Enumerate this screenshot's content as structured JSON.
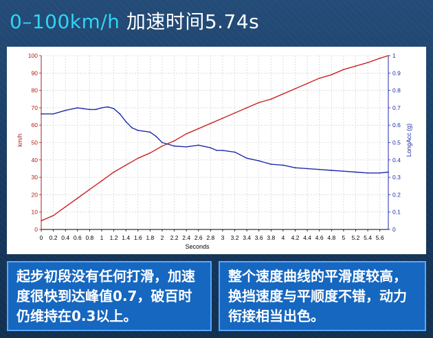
{
  "header": {
    "title_accent": "0–100km/h",
    "title_rest": " 加速时间5.74s"
  },
  "colors": {
    "speed_line": "#cc2222",
    "accel_line": "#1e2aa8",
    "grid": "#c8c8c8",
    "axis": "#000000"
  },
  "chart_data": {
    "type": "line",
    "xlabel": "Seconds",
    "ylabel": "km/h",
    "y2label": "LongAcc (g)",
    "xlim": [
      0,
      5.74
    ],
    "ylim": [
      0,
      100
    ],
    "y2lim": [
      0,
      1
    ],
    "grid": true,
    "x_ticks": [
      "0",
      "0.2",
      "0.4",
      "0.6",
      "0.8",
      "1",
      "1.2",
      "1.4",
      "1.6",
      "1.8",
      "2",
      "2.2",
      "2.4",
      "2.6",
      "2.8",
      "3",
      "3.2",
      "3.4",
      "3.6",
      "3.8",
      "4",
      "4.2",
      "4.4",
      "4.6",
      "4.8",
      "5",
      "5.2",
      "5.4",
      "5.6"
    ],
    "y_ticks": [
      "0",
      "10",
      "20",
      "30",
      "40",
      "50",
      "60",
      "70",
      "80",
      "90",
      "100"
    ],
    "y2_ticks": [
      "0",
      "0.1",
      "0.2",
      "0.3",
      "0.4",
      "0.5",
      "0.6",
      "0.7",
      "0.8",
      "0.9",
      "1"
    ],
    "series": [
      {
        "axis": "left",
        "x": [
          0,
          0.2,
          0.4,
          0.6,
          0.8,
          1.0,
          1.2,
          1.4,
          1.6,
          1.8,
          2.0,
          2.2,
          2.4,
          2.6,
          2.8,
          3.0,
          3.2,
          3.4,
          3.6,
          3.8,
          4.0,
          4.2,
          4.4,
          4.6,
          4.8,
          5.0,
          5.2,
          5.4,
          5.6,
          5.74
        ],
        "values": [
          5,
          8,
          13,
          18,
          23,
          28,
          33,
          37,
          41,
          44,
          48,
          51,
          55,
          58,
          61,
          64,
          67,
          70,
          73,
          75,
          78,
          81,
          84,
          87,
          89,
          92,
          94,
          96,
          98.5,
          100
        ]
      },
      {
        "axis": "right",
        "x": [
          0,
          0.2,
          0.4,
          0.6,
          0.7,
          0.8,
          0.9,
          1.0,
          1.1,
          1.2,
          1.3,
          1.4,
          1.5,
          1.6,
          1.8,
          1.9,
          2.0,
          2.2,
          2.4,
          2.6,
          2.8,
          2.9,
          3.0,
          3.2,
          3.4,
          3.6,
          3.8,
          4.0,
          4.2,
          4.4,
          4.6,
          4.8,
          5.0,
          5.2,
          5.4,
          5.6,
          5.74
        ],
        "values": [
          0.665,
          0.665,
          0.685,
          0.7,
          0.695,
          0.69,
          0.69,
          0.7,
          0.705,
          0.695,
          0.665,
          0.62,
          0.585,
          0.57,
          0.56,
          0.535,
          0.5,
          0.48,
          0.475,
          0.485,
          0.47,
          0.455,
          0.455,
          0.445,
          0.41,
          0.395,
          0.375,
          0.37,
          0.355,
          0.35,
          0.345,
          0.34,
          0.335,
          0.33,
          0.325,
          0.325,
          0.33
        ]
      }
    ]
  },
  "captions": {
    "left": "起步初段没有任何打滑，加速度很快到达峰值0.7，破百时仍维持在0.3以上。",
    "right": "整个速度曲线的平滑度较高，换挡速度与平顺度不错，动力衔接相当出色。"
  }
}
